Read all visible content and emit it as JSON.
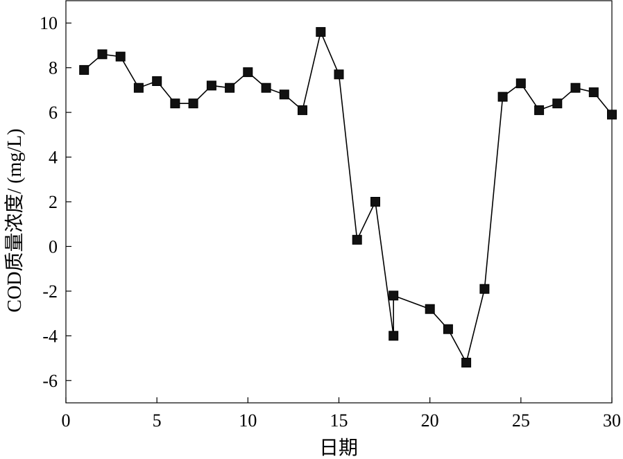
{
  "chart_data": {
    "type": "line",
    "xlabel": "日期",
    "ylabel": "COD质量浓度/ (mg/L)",
    "xlim": [
      0,
      30
    ],
    "ylim": [
      -7,
      11
    ],
    "xticks": [
      0,
      5,
      10,
      15,
      20,
      25,
      30
    ],
    "yticks": [
      -6,
      -4,
      -2,
      0,
      2,
      4,
      6,
      8,
      10
    ],
    "grid": false,
    "legend": "none",
    "marker": "square",
    "line_color": "#000000",
    "marker_color": "#111111",
    "series": [
      {
        "x": [
          1,
          2,
          3,
          4,
          5,
          6,
          7,
          8,
          9,
          10,
          11,
          12,
          13,
          14,
          15,
          16,
          17,
          18,
          18,
          20,
          21,
          22,
          23,
          24,
          25,
          26,
          27,
          28,
          29,
          30
        ],
        "y": [
          7.9,
          8.6,
          8.5,
          7.1,
          7.4,
          6.4,
          6.4,
          7.2,
          7.1,
          7.8,
          7.1,
          6.8,
          6.1,
          9.6,
          7.7,
          0.3,
          2.0,
          -4.0,
          -2.2,
          -2.8,
          -3.7,
          -5.2,
          -1.9,
          6.7,
          7.3,
          6.1,
          6.4,
          7.1,
          6.9,
          5.9
        ]
      }
    ]
  }
}
